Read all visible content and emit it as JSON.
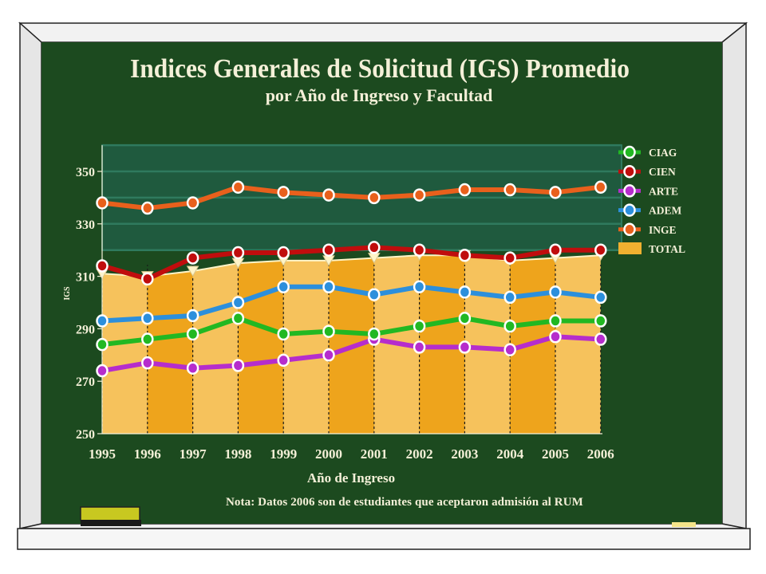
{
  "colors": {
    "board": "#1c4a1f",
    "frame_light": "#f2f2f2",
    "frame_dark": "#7a7a7a",
    "band_dark": "#1f5a3e",
    "band_mid": "#2f7a5e",
    "area_light": "#f6c25c",
    "area_dark": "#eea41c",
    "text": "#f4f0d8",
    "CIAG": "#22b822",
    "CIEN": "#c00d0d",
    "ARTE": "#b62dcc",
    "ADEM": "#2c8fdc",
    "INGE": "#e8601c",
    "TOTAL": "#f0b030",
    "eraser": "#c8c820"
  },
  "note": "Nota:  Datos 2006 son de estudiantes que aceptaron admisión al RUM",
  "chart_data": {
    "type": "line",
    "title": "Indices Generales de Solicitud (IGS) Promedio",
    "subtitle": "por Año de Ingreso y Facultad",
    "xlabel": "Año de Ingreso",
    "ylabel": "IGS",
    "categories": [
      "1995",
      "1996",
      "1997",
      "1998",
      "1999",
      "2000",
      "2001",
      "2002",
      "2003",
      "2004",
      "2005",
      "2006"
    ],
    "ylim": [
      250,
      360
    ],
    "yticks": [
      250,
      270,
      290,
      310,
      330,
      350
    ],
    "legend_position": "right",
    "series": [
      {
        "name": "CIAG",
        "values": [
          284,
          286,
          288,
          294,
          288,
          289,
          288,
          291,
          294,
          291,
          293,
          293
        ]
      },
      {
        "name": "CIEN",
        "values": [
          314,
          309,
          317,
          319,
          319,
          320,
          321,
          320,
          318,
          317,
          320,
          320
        ]
      },
      {
        "name": "ARTE",
        "values": [
          274,
          277,
          275,
          276,
          278,
          280,
          286,
          283,
          283,
          282,
          287,
          286
        ]
      },
      {
        "name": "ADEM",
        "values": [
          293,
          294,
          295,
          300,
          306,
          306,
          303,
          306,
          304,
          302,
          304,
          302
        ]
      },
      {
        "name": "INGE",
        "values": [
          338,
          336,
          338,
          344,
          342,
          341,
          340,
          341,
          343,
          343,
          342,
          344
        ]
      },
      {
        "name": "TOTAL",
        "values": [
          311,
          310,
          312,
          315,
          316,
          316,
          317,
          318,
          318,
          316,
          317,
          318
        ]
      }
    ]
  }
}
